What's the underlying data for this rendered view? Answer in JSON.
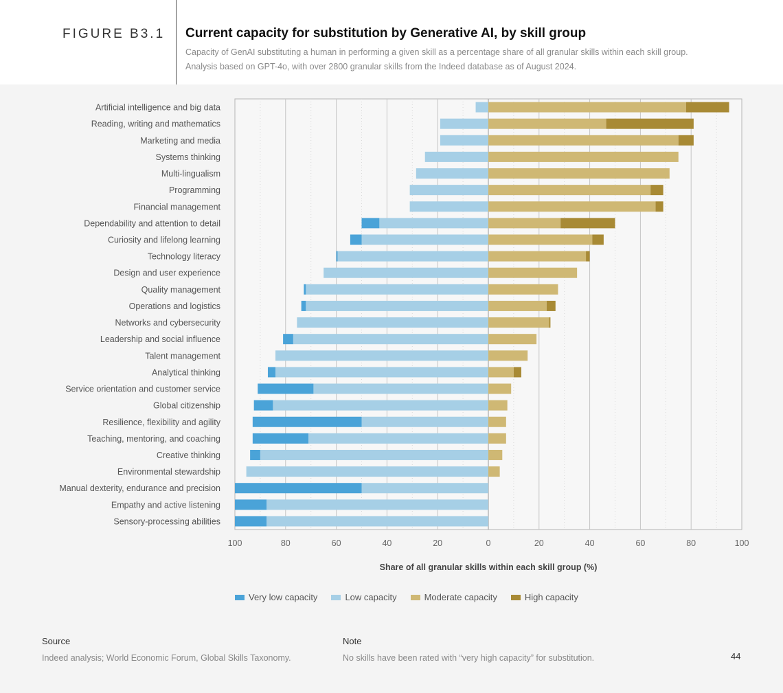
{
  "header": {
    "figure_label": "FIGURE B3.1",
    "title": "Current capacity for substitution by Generative AI, by skill group",
    "subtitle_line1": "Capacity of GenAI substituting a human in performing a given skill as a percentage share of all granular skills within each skill group.",
    "subtitle_line2": "Analysis based on GPT-4o, with over 2800 granular skills from the Indeed database as of August 2024."
  },
  "colors": {
    "very_low": "#4aa3d8",
    "low": "#a6cfe6",
    "moderate": "#cfb874",
    "high": "#a88a35"
  },
  "chart_data": {
    "type": "bar",
    "orientation": "horizontal-diverging",
    "xlabel": "Share of all granular skills within each skill group (%)",
    "x_ticks": [
      "100",
      "80",
      "60",
      "40",
      "20",
      "0",
      "20",
      "40",
      "60",
      "80",
      "100"
    ],
    "xlim": [
      -100,
      100
    ],
    "legend": [
      "Very low capacity",
      "Low capacity",
      "Moderate capacity",
      "High capacity"
    ],
    "categories": [
      "Artificial intelligence and big data",
      "Reading, writing and mathematics",
      "Marketing and media",
      "Systems thinking",
      "Multi-lingualism",
      "Programming",
      "Financial management",
      "Dependability and attention to detail",
      "Curiosity and lifelong learning",
      "Technology literacy",
      "Design and user experience",
      "Quality management",
      "Operations and logistics",
      "Networks and cybersecurity",
      "Leadership and social influence",
      "Talent management",
      "Analytical thinking",
      "Service orientation and customer service",
      "Global citizenship",
      "Resilience, flexibility and agility",
      "Teaching, mentoring, and coaching",
      "Creative thinking",
      "Environmental stewardship",
      "Manual dexterity, endurance and precision",
      "Empathy and active listening",
      "Sensory-processing abilities"
    ],
    "series": [
      {
        "name": "Very low capacity",
        "side": "left",
        "values": [
          0,
          0,
          0,
          0,
          0,
          0,
          0,
          7,
          4.5,
          0.5,
          0,
          0.8,
          1.8,
          0,
          4,
          0,
          3,
          22,
          7.5,
          43,
          22,
          4,
          0,
          50,
          12.5,
          12.5
        ]
      },
      {
        "name": "Low capacity",
        "side": "left",
        "values": [
          5,
          19,
          19,
          25,
          28.5,
          31,
          31,
          43,
          50,
          59.5,
          65,
          72,
          72,
          75.5,
          77,
          84,
          84,
          69,
          85,
          50,
          71,
          90,
          95.5,
          50,
          87.5,
          87.5
        ]
      },
      {
        "name": "Moderate capacity",
        "side": "right",
        "values": [
          78,
          46.5,
          75,
          75,
          71.5,
          64,
          66,
          28.5,
          41,
          38.5,
          35,
          27.5,
          23,
          24,
          19,
          15.5,
          10,
          9,
          7.5,
          7,
          7,
          5.5,
          4.5,
          0,
          0,
          0
        ]
      },
      {
        "name": "High capacity",
        "side": "right",
        "values": [
          17,
          34.5,
          6,
          0,
          0,
          5,
          3,
          21.5,
          4.5,
          1.5,
          0,
          0,
          3.5,
          0.5,
          0,
          0,
          3,
          0,
          0,
          0,
          0,
          0,
          0,
          0,
          0,
          0
        ]
      }
    ]
  },
  "footer": {
    "source_heading": "Source",
    "source_text": "Indeed analysis; World Economic Forum, Global Skills Taxonomy.",
    "note_heading": "Note",
    "note_text": "No skills have been rated with “very high capacity” for substitution.",
    "page_number": "44"
  }
}
